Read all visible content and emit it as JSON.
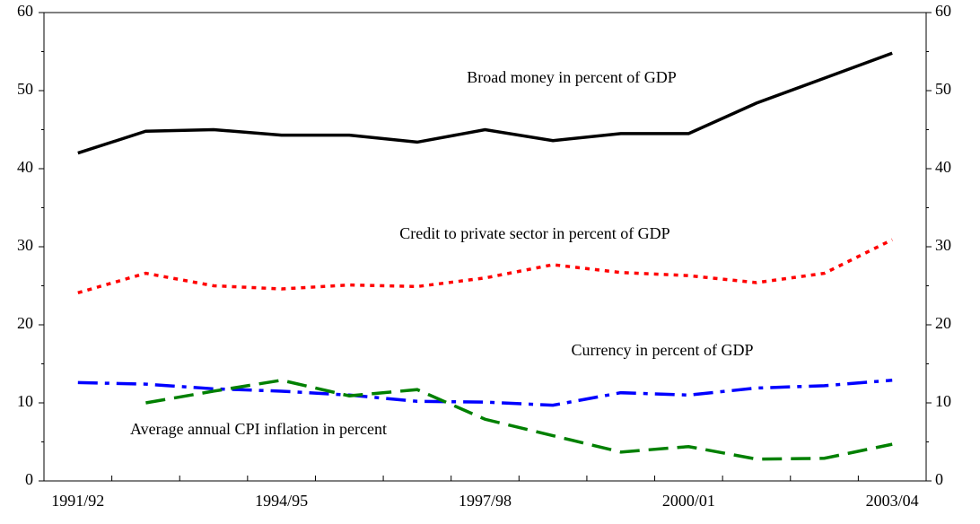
{
  "chart_data": {
    "type": "line",
    "categories": [
      "1991/92",
      null,
      null,
      "1994/95",
      null,
      null,
      "1997/98",
      null,
      null,
      "2000/01",
      null,
      null,
      "2003/04"
    ],
    "series": [
      {
        "name": "Broad money in percent of GDP",
        "color": "#000000",
        "style": "solid",
        "values": [
          42.0,
          44.8,
          45.0,
          44.3,
          44.3,
          43.4,
          45.0,
          43.6,
          44.5,
          44.5,
          48.4,
          51.6,
          54.8
        ]
      },
      {
        "name": "Credit to private sector in percent of GDP",
        "color": "#ff0000",
        "style": "dotted",
        "values": [
          24.1,
          26.6,
          25.0,
          24.6,
          25.1,
          24.9,
          26.0,
          27.7,
          26.7,
          26.3,
          25.4,
          26.6,
          30.9
        ]
      },
      {
        "name": "Currency in percent of GDP",
        "color": "#0000ff",
        "style": "dashdot",
        "values": [
          12.6,
          12.4,
          11.8,
          11.5,
          11.0,
          10.2,
          10.1,
          9.7,
          11.3,
          11.0,
          11.9,
          12.2,
          12.9
        ]
      },
      {
        "name": "Average annual CPI inflation in percent",
        "color": "#008000",
        "style": "dashed",
        "values": [
          null,
          10.0,
          11.5,
          12.9,
          10.9,
          11.7,
          7.9,
          5.8,
          3.7,
          4.4,
          2.8,
          2.9,
          4.7
        ]
      }
    ],
    "ylim": [
      0,
      60
    ],
    "yticks": [
      0,
      10,
      20,
      30,
      40,
      50,
      60
    ],
    "y2lim": [
      0,
      60
    ],
    "y2ticks": [
      0,
      10,
      20,
      30,
      40,
      50,
      60
    ]
  }
}
